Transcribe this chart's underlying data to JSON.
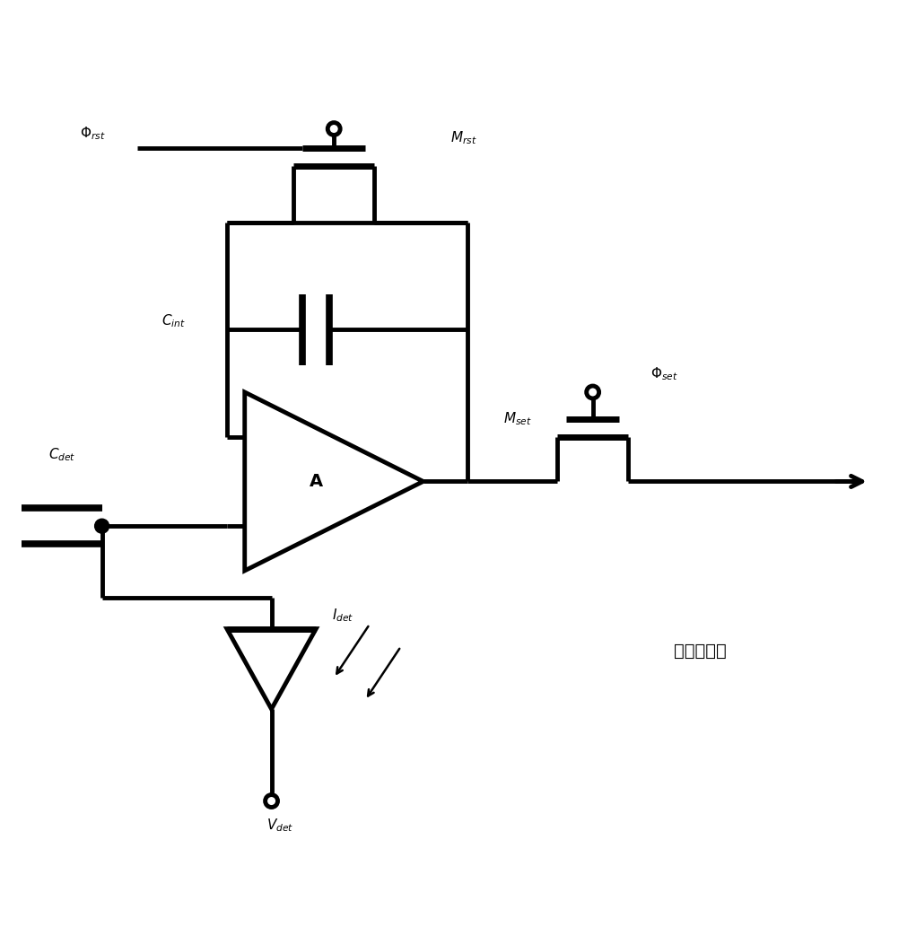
{
  "bg": "#ffffff",
  "lc": "#000000",
  "lw": 3.5,
  "fw": 10.03,
  "fh": 10.53,
  "labels": {
    "phi_rst": "$\\Phi_{rst}$",
    "M_rst": "$M_{rst}$",
    "C_int": "$C_{int}$",
    "phi_set": "$\\Phi_{set}$",
    "M_set": "$M_{set}$",
    "I_det": "$I_{det}$",
    "C_det": "$C_{det}$",
    "V_det": "$V_{det}$",
    "A_amp": "A",
    "chinese": "至选通开关"
  }
}
